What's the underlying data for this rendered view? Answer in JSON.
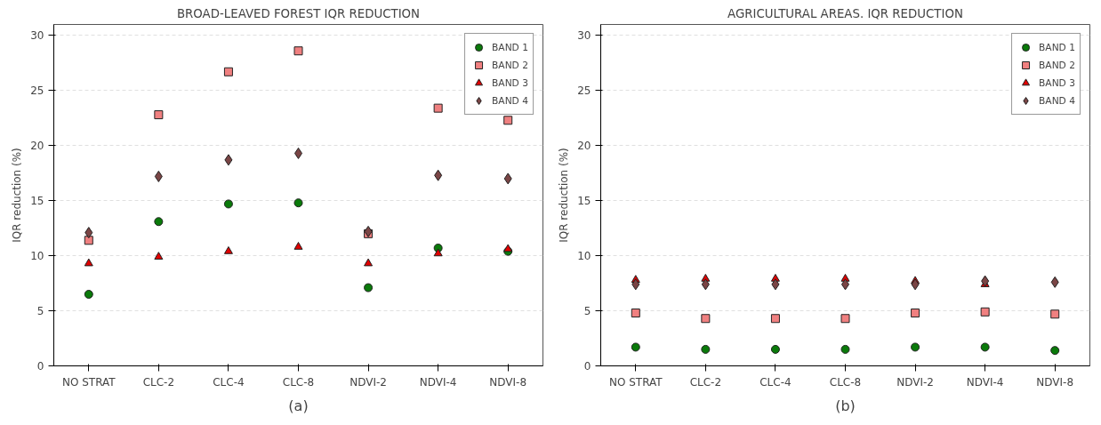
{
  "chart_data": [
    {
      "type": "scatter",
      "title": "BROAD-LEAVED FOREST IQR REDUCTION",
      "ylabel": "IQR reduction (%)",
      "annotations": [
        "(a)"
      ],
      "categories": [
        "NO STRAT",
        "CLC-2",
        "CLC-4",
        "CLC-8",
        "NDVI-2",
        "NDVI-4",
        "NDVI-8"
      ],
      "ylim": [
        0,
        31
      ],
      "yticks": [
        0,
        5,
        10,
        15,
        20,
        25,
        30
      ],
      "grid": "y",
      "legend": "top right",
      "series": [
        {
          "name": "BAND 1",
          "color": "#0a7a0a",
          "marker": "circle",
          "values": [
            6.5,
            13.1,
            14.7,
            14.8,
            7.1,
            10.7,
            10.4
          ]
        },
        {
          "name": "BAND 2",
          "color": "#f08080",
          "marker": "square",
          "values": [
            11.4,
            22.8,
            26.7,
            28.6,
            12.0,
            23.4,
            22.3
          ]
        },
        {
          "name": "BAND 3",
          "color": "#e00000",
          "marker": "triangle",
          "values": [
            9.3,
            9.9,
            10.4,
            10.8,
            9.3,
            10.2,
            10.6
          ]
        },
        {
          "name": "BAND 4",
          "color": "#7a4545",
          "marker": "diamond",
          "values": [
            12.1,
            17.2,
            18.7,
            19.3,
            12.2,
            17.3,
            17.0
          ]
        }
      ]
    },
    {
      "type": "scatter",
      "title": "AGRICULTURAL AREAS. IQR REDUCTION",
      "ylabel": "IQR reduction (%)",
      "annotations": [
        "(b)"
      ],
      "categories": [
        "NO STRAT",
        "CLC-2",
        "CLC-4",
        "CLC-8",
        "NDVI-2",
        "NDVI-4",
        "NDVI-8"
      ],
      "ylim": [
        0,
        31
      ],
      "yticks": [
        0,
        5,
        10,
        15,
        20,
        25,
        30
      ],
      "grid": "y",
      "legend": "top right",
      "series": [
        {
          "name": "BAND 1",
          "color": "#0a7a0a",
          "marker": "circle",
          "values": [
            1.7,
            1.5,
            1.5,
            1.5,
            1.7,
            1.7,
            1.4
          ]
        },
        {
          "name": "BAND 2",
          "color": "#f08080",
          "marker": "square",
          "values": [
            4.8,
            4.3,
            4.3,
            4.3,
            4.8,
            4.9,
            4.7
          ]
        },
        {
          "name": "BAND 3",
          "color": "#e00000",
          "marker": "triangle",
          "values": [
            7.8,
            7.9,
            7.9,
            7.9,
            7.7,
            7.4,
            null
          ]
        },
        {
          "name": "BAND 4",
          "color": "#7a4545",
          "marker": "diamond",
          "values": [
            7.4,
            7.4,
            7.4,
            7.4,
            7.4,
            7.7,
            7.6
          ]
        }
      ]
    }
  ]
}
